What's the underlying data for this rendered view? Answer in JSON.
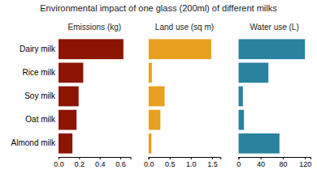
{
  "title": "Environmental impact of one glass (200ml) of different milks",
  "chart_data": [
    {
      "type": "bar",
      "orientation": "horizontal",
      "title": "Emissions (kg)",
      "categories": [
        "Dairy milk",
        "Rice milk",
        "Soy milk",
        "Oat milk",
        "Almond milk"
      ],
      "values": [
        0.63,
        0.24,
        0.195,
        0.175,
        0.135
      ],
      "color": "#8B1500",
      "xlim": [
        0,
        0.7
      ],
      "xticks": [
        {
          "value": 0.0,
          "label": "0.0"
        },
        0.2,
        0.4,
        0.6
      ]
    },
    {
      "type": "bar",
      "orientation": "horizontal",
      "title": "Land use (sq m)",
      "categories": [
        "Dairy milk",
        "Rice milk",
        "Soy milk",
        "Oat milk",
        "Almond milk"
      ],
      "values": [
        1.48,
        0.08,
        0.38,
        0.28,
        0.07
      ],
      "color": "#E8A020",
      "xlim": [
        0.0,
        1.7
      ],
      "xticks": [
        {
          "value": 0.0,
          "label": "0.0"
        },
        0.5,
        {
          "value": 1.0,
          "label": "1.0"
        },
        1.5
      ],
      "tick_labels": "x"
    },
    {
      "type": "bar",
      "orientation": "horizontal",
      "title": "Water use (L)",
      "categories": [
        "Dairy milk",
        "Rice milk",
        "Soy milk",
        "Oat milk",
        "Almond milk"
      ],
      "values": [
        120,
        54,
        8,
        10,
        74
      ],
      "color": "#2882A0",
      "xlim": [
        0,
        130
      ],
      "xticks": [
        0,
        40,
        80,
        120
      ],
      "tick_labels": "x"
    }
  ]
}
